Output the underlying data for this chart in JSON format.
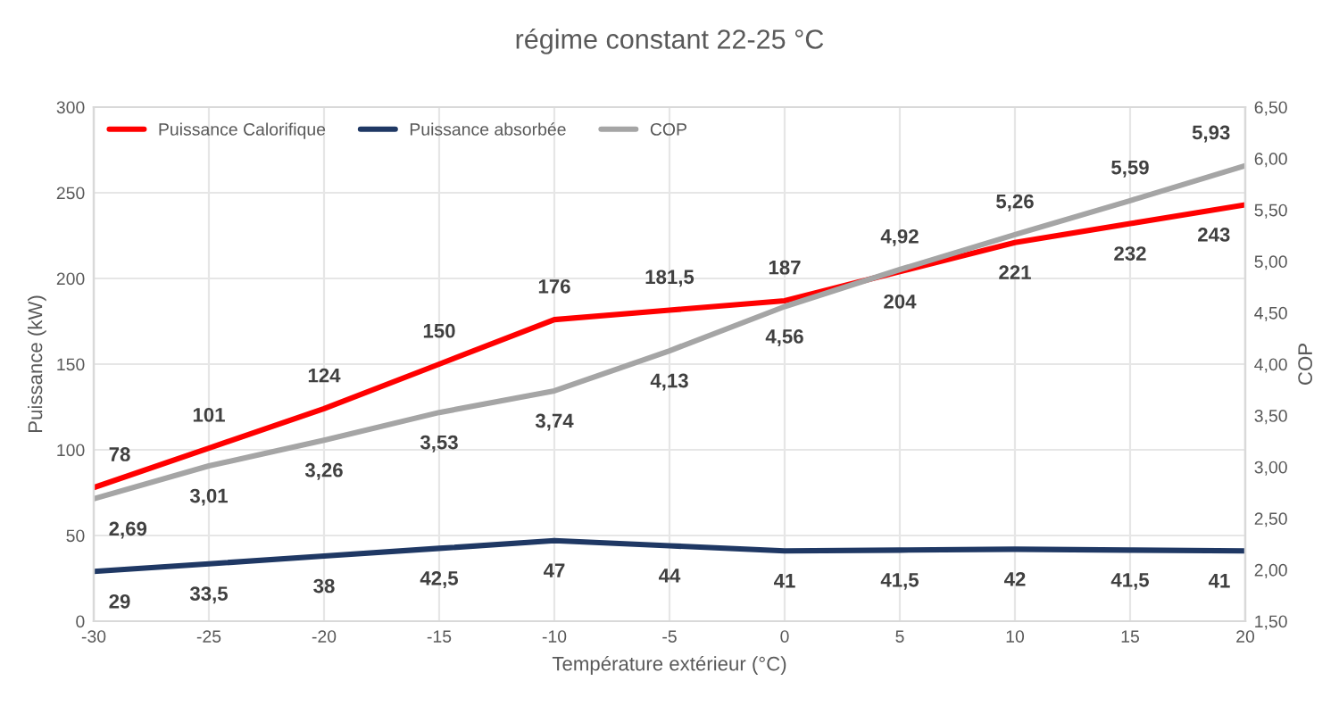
{
  "chart_data": {
    "type": "line",
    "title": "régime constant 22-25 °C",
    "xlabel": "Température extérieur (°C)",
    "ylabel": "Puissance (kW)",
    "y2label": "COP",
    "x": [
      -30,
      -25,
      -20,
      -15,
      -10,
      -5,
      0,
      5,
      10,
      15,
      20
    ],
    "series": [
      {
        "name": "Puissance Calorifique",
        "color": "#ff0000",
        "values": [
          78,
          101,
          124,
          150,
          176,
          181.5,
          187,
          204,
          221,
          232,
          243
        ],
        "value_labels": [
          "78",
          "101",
          "124",
          "150",
          "176",
          "181,5",
          "187",
          "204",
          "221",
          "232",
          "243"
        ]
      },
      {
        "name": "Puissance absorbée",
        "color": "#1f3864",
        "values": [
          29,
          33.5,
          38,
          42.5,
          47,
          44,
          41,
          41.5,
          42,
          41.5,
          41
        ],
        "value_labels": [
          "29",
          "33,5",
          "38",
          "42,5",
          "47",
          "44",
          "41",
          "41,5",
          "42",
          "41,5",
          "41"
        ]
      },
      {
        "name": "COP",
        "color": "#a5a5a5",
        "axis": "y2",
        "values": [
          2.69,
          3.01,
          3.26,
          3.53,
          3.74,
          4.13,
          4.56,
          4.92,
          5.26,
          5.59,
          5.93
        ],
        "value_labels": [
          "2,69",
          "3,01",
          "3,26",
          "3,53",
          "3,74",
          "4,13",
          "4,56",
          "4,92",
          "5,26",
          "5,59",
          "5,93"
        ]
      }
    ],
    "xlim": [
      -30,
      20
    ],
    "xticks": [
      -30,
      -25,
      -20,
      -15,
      -10,
      -5,
      0,
      5,
      10,
      15,
      20
    ],
    "ylim": [
      0,
      300
    ],
    "yticks": [
      0,
      50,
      100,
      150,
      200,
      250,
      300
    ],
    "y2lim": [
      1.5,
      6.5
    ],
    "y2ticks": [
      {
        "value": 1.5,
        "label": "1,50"
      },
      {
        "value": 2.0,
        "label": "2,00"
      },
      {
        "value": 2.5,
        "label": "2,50"
      },
      {
        "value": 3.0,
        "label": "3,00"
      },
      {
        "value": 3.5,
        "label": "3,50"
      },
      {
        "value": 4.0,
        "label": "4,00"
      },
      {
        "value": 4.5,
        "label": "4,50"
      },
      {
        "value": 5.0,
        "label": "5,00"
      },
      {
        "value": 5.5,
        "label": "5,50"
      },
      {
        "value": 6.0,
        "label": "6,00"
      },
      {
        "value": 6.5,
        "label": "6,50"
      }
    ],
    "grid": true,
    "legend": "top left"
  }
}
